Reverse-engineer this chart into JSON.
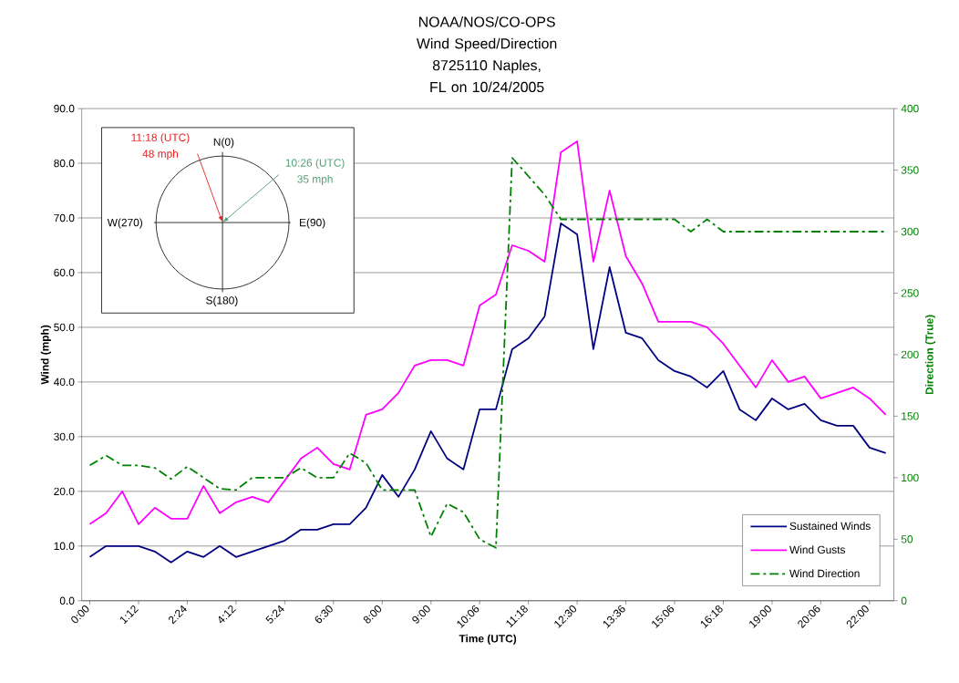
{
  "chart_data": {
    "type": "line",
    "title": "NOAA/NOS/CO-OPS Wind Speed/Direction",
    "subtitle": "8725110 Naples, FL on 10/24/2005",
    "xlabel": "Time (UTC)",
    "ylabel": "Wind (mph)",
    "y2label": "Direction (True)",
    "categories": [
      "0:00",
      null,
      null,
      "1:12",
      null,
      null,
      "2:24",
      null,
      null,
      "4:12",
      null,
      null,
      "5:24",
      null,
      null,
      "6:30",
      null,
      null,
      "8:00",
      null,
      null,
      "9:00",
      null,
      null,
      "10:06",
      null,
      null,
      "11:18",
      null,
      null,
      "12:30",
      null,
      null,
      "13:36",
      null,
      null,
      "15:06",
      null,
      null,
      "16:18",
      null,
      null,
      "19:00",
      null,
      null,
      "20:06",
      null,
      null,
      "22:00",
      null
    ],
    "series": [
      {
        "name": "Sustained Winds",
        "color": "#000080",
        "values": [
          8,
          10,
          10,
          10,
          9,
          7,
          9,
          8,
          10,
          8,
          9,
          10,
          11,
          13,
          13,
          14,
          14,
          17,
          23,
          19,
          24,
          31,
          26,
          24,
          35,
          35,
          46,
          48,
          52,
          69,
          67,
          46,
          61,
          49,
          48,
          44,
          42,
          41,
          39,
          42,
          35,
          33,
          37,
          35,
          36,
          33,
          32,
          32,
          28,
          27
        ]
      },
      {
        "name": "Wind Gusts",
        "color": "#ff00ff",
        "values": [
          14,
          16,
          20,
          14,
          17,
          15,
          15,
          21,
          16,
          18,
          19,
          18,
          22,
          26,
          28,
          25,
          24,
          34,
          35,
          38,
          43,
          44,
          44,
          43,
          54,
          56,
          65,
          64,
          62,
          82,
          84,
          62,
          75,
          63,
          58,
          51,
          51,
          51,
          50,
          47,
          43,
          39,
          44,
          40,
          41,
          37,
          38,
          39,
          37,
          34
        ]
      },
      {
        "name": "Wind Direction",
        "color": "#008000",
        "axis": "y2",
        "line_style": "dashdot",
        "values": [
          110,
          118,
          110,
          110,
          108,
          99,
          109,
          100,
          91,
          90,
          100,
          100,
          100,
          108,
          100,
          100,
          120,
          112,
          90,
          90,
          90,
          52,
          79,
          72,
          50,
          43,
          360,
          345,
          330,
          310,
          310,
          310,
          310,
          310,
          310,
          310,
          310,
          300,
          310,
          300,
          300,
          300,
          300,
          300,
          300,
          300,
          300,
          300,
          300,
          300
        ]
      }
    ],
    "ylim": [
      0,
      90
    ],
    "yticks": [
      {
        "value": 0,
        "label": "0.0"
      },
      {
        "value": 10,
        "label": "10.0"
      },
      {
        "value": 20,
        "label": "20.0"
      },
      {
        "value": 30,
        "label": "30.0"
      },
      {
        "value": 40,
        "label": "40.0"
      },
      {
        "value": 50,
        "label": "50.0"
      },
      {
        "value": 60,
        "label": "60.0"
      },
      {
        "value": 70,
        "label": "70.0"
      },
      {
        "value": 80,
        "label": "80.0"
      },
      {
        "value": 90,
        "label": "90.0"
      }
    ],
    "y2lim": [
      0,
      400
    ],
    "y2ticks": [
      0,
      50,
      100,
      150,
      200,
      250,
      300,
      350,
      400
    ],
    "grid": "y",
    "legend": "bottom right",
    "marker": "none",
    "line_style": "solid",
    "annotations": [
      "11:18 (UTC)",
      "48 mph",
      "10:26 (UTC)",
      "35 mph",
      "N(0)",
      "E(90)",
      "S(180)",
      "W(270)"
    ]
  }
}
